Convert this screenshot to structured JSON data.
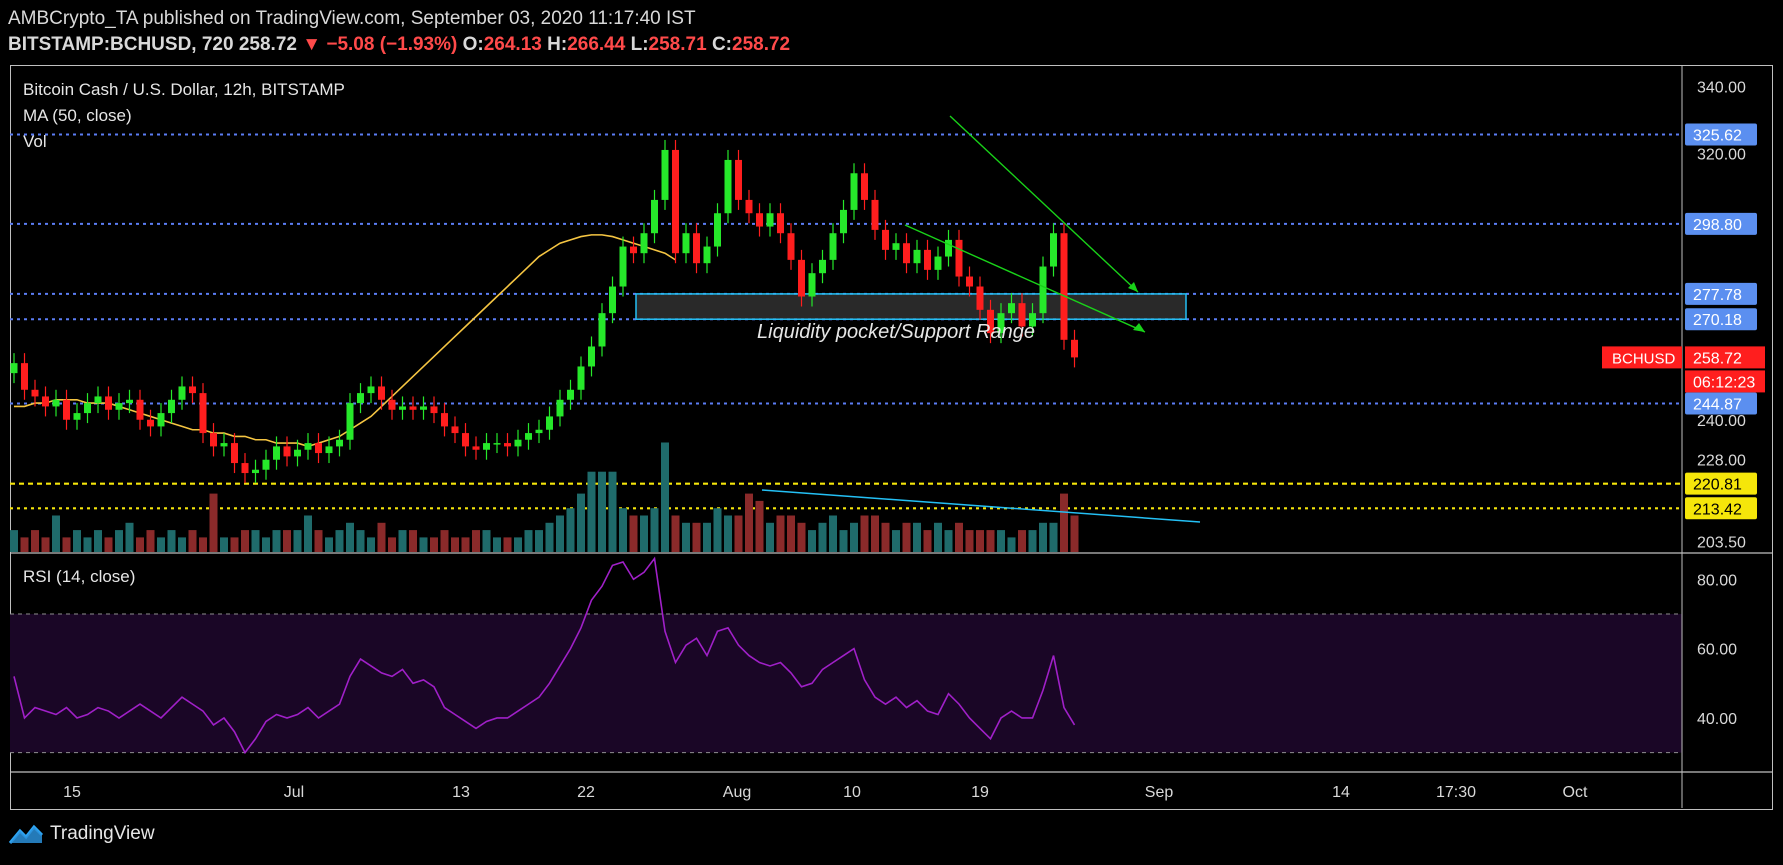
{
  "header": {
    "publisher_line": "AMBCrypto_TA published on TradingView.com, September 03, 2020 11:17:40 IST",
    "symbol": "BITSTAMP:BCHUSD, 720",
    "last": "258.72",
    "change_arrow": "▼",
    "change": "−5.08 (−1.93%)",
    "o_label": "O:",
    "o": "264.13",
    "h_label": "H:",
    "h": "266.44",
    "l_label": "L:",
    "l": "258.71",
    "c_label": "C:",
    "c": "258.72"
  },
  "legend": {
    "title": "Bitcoin Cash / U.S. Dollar, 12h, BITSTAMP",
    "ma": "MA (50, close)",
    "vol": "Vol",
    "rsi": "RSI (14, close)"
  },
  "annotation": "Liquidity pocket/Support Range",
  "footer": {
    "brand": "TradingView"
  },
  "colors": {
    "up": "#26e82a",
    "down": "#ff1e1e",
    "ma": "#f5c542",
    "level_blue": "#5b7df5",
    "level_yellow": "#f5e60a",
    "rsi_line": "#a020c8",
    "rsi_band": "#1a0626",
    "zone": "#24c0f5",
    "wedge": "#19d219",
    "vol_up": "#1f6b6b",
    "vol_down": "#8a2a2a"
  },
  "chart_data": [
    {
      "type": "candlestick",
      "title": "Bitcoin Cash / U.S. Dollar, 12h, BITSTAMP",
      "x_ticks": [
        "15",
        "Jul",
        "13",
        "22",
        "Aug",
        "10",
        "19",
        "Sep",
        "14",
        "17:30",
        "Oct"
      ],
      "price_ticks": [
        "340.00",
        "320.00",
        "240.00",
        "228.00",
        "203.50"
      ],
      "ylim": [
        200,
        345
      ],
      "levels": [
        {
          "value": 325.62,
          "label": "325.62",
          "style": "blue"
        },
        {
          "value": 298.8,
          "label": "298.80",
          "style": "blue"
        },
        {
          "value": 277.78,
          "label": "277.78",
          "style": "blue"
        },
        {
          "value": 270.18,
          "label": "270.18",
          "style": "blue"
        },
        {
          "value": 244.87,
          "label": "244.87",
          "style": "blue"
        },
        {
          "value": 220.81,
          "label": "220.81",
          "style": "yellow"
        },
        {
          "value": 213.42,
          "label": "213.42",
          "style": "yellow"
        }
      ],
      "last_price": {
        "label": "BCHUSD",
        "value": "258.72",
        "countdown": "06:12:23"
      },
      "close": [
        257,
        249,
        247,
        244,
        246,
        240,
        242,
        245,
        247,
        243,
        245,
        246,
        240,
        238,
        242,
        246,
        250,
        248,
        236,
        232,
        233,
        227,
        224,
        225,
        228,
        232,
        229,
        231,
        233,
        230,
        232,
        234,
        245,
        248,
        250,
        246,
        243,
        244,
        243,
        244,
        242,
        238,
        236,
        232,
        231,
        233,
        233,
        232,
        234,
        236,
        237,
        241,
        246,
        249,
        256,
        262,
        272,
        280,
        292,
        290,
        296,
        306,
        321,
        290,
        296,
        287,
        292,
        302,
        318,
        306,
        302,
        298,
        302,
        296,
        288,
        277,
        284,
        288,
        296,
        303,
        314,
        306,
        297,
        291,
        293,
        287,
        291,
        285,
        289,
        294,
        283,
        280,
        273,
        266,
        272,
        275,
        268,
        272,
        286,
        296,
        264,
        258.72
      ],
      "ma50": [
        244,
        244,
        245,
        245,
        246,
        246,
        246,
        245,
        245,
        245,
        244,
        243,
        242,
        241,
        240,
        239,
        238,
        237,
        237,
        236,
        236,
        235,
        235,
        234,
        234,
        233,
        233,
        233,
        232,
        233,
        234,
        235,
        237,
        239,
        241,
        244,
        247,
        250,
        253,
        256,
        259,
        262,
        265,
        268,
        271,
        274,
        277,
        280,
        283,
        286,
        289,
        291,
        293,
        294,
        295,
        295.5,
        295.5,
        295,
        294,
        293,
        292,
        291,
        290,
        288
      ]
    },
    {
      "type": "bar",
      "series": [
        {
          "name": "Vol",
          "values": [
            3,
            2,
            3,
            2,
            5,
            2,
            3,
            2,
            3,
            2,
            3,
            4,
            2,
            3,
            2,
            3,
            2,
            3,
            2,
            8,
            2,
            2,
            3,
            3,
            2,
            3,
            3,
            3,
            5,
            3,
            2,
            3,
            4,
            3,
            2,
            4,
            2,
            3,
            3,
            2,
            2,
            3,
            2,
            2,
            3,
            3,
            2,
            2,
            2,
            3,
            3,
            4,
            5,
            6,
            8,
            11,
            11,
            11,
            6,
            5,
            5,
            6,
            15,
            5,
            4,
            4,
            4,
            6,
            5,
            5,
            8,
            7,
            4,
            5,
            5,
            4,
            3,
            4,
            5,
            3,
            4,
            5,
            5,
            4,
            3,
            4,
            4,
            3,
            4,
            3,
            4,
            3,
            3,
            3,
            3,
            2,
            3,
            3,
            4,
            4,
            8,
            5
          ]
        }
      ]
    },
    {
      "type": "line",
      "title": "RSI (14, close)",
      "y_ticks": [
        "80.00",
        "60.00",
        "40.00"
      ],
      "ylim": [
        25,
        87
      ],
      "bands": [
        70,
        30
      ],
      "series": [
        {
          "name": "RSI",
          "values": [
            52,
            40,
            43,
            42,
            41,
            43,
            40,
            41,
            43,
            42,
            40,
            42,
            44,
            42,
            40,
            43,
            46,
            44,
            42,
            38,
            40,
            36,
            30,
            34,
            39,
            41,
            40,
            41,
            43,
            40,
            42,
            44,
            52,
            57,
            55,
            53,
            52,
            54,
            50,
            51,
            49,
            43,
            41,
            39,
            37,
            39,
            40,
            40,
            42,
            44,
            46,
            50,
            55,
            60,
            66,
            74,
            78,
            84,
            85,
            80,
            82,
            86,
            65,
            56,
            61,
            63,
            58,
            65,
            66,
            61,
            58,
            56,
            55,
            56,
            53,
            49,
            50,
            54,
            56,
            58,
            60,
            51,
            46,
            44,
            46,
            43,
            45,
            42,
            41,
            47,
            44,
            40,
            37,
            34,
            40,
            42,
            40,
            40,
            48,
            58,
            43,
            38
          ]
        }
      ]
    }
  ]
}
